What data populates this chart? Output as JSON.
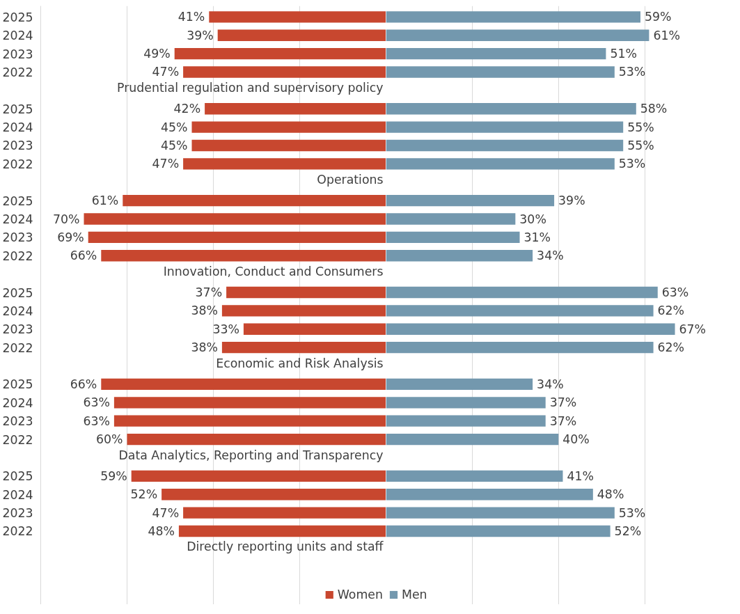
{
  "chart_data": [
    {
      "type": "bar",
      "orientation": "horizontal",
      "categories": [
        "2025",
        "2024",
        "2023",
        "2022",
        null,
        "2025",
        "2024",
        "2023",
        "2022",
        null,
        "2025",
        "2024",
        "2023",
        "2022",
        null,
        "2025",
        "2024",
        "2023",
        "2022",
        null,
        "2025",
        "2024",
        "2023",
        "2022",
        null,
        "2025",
        "2024",
        "2023",
        "2022",
        null
      ],
      "series": [
        {
          "name": "Women",
          "color": "#c8472f",
          "values": [
            41,
            39,
            49,
            47,
            null,
            42,
            45,
            45,
            47,
            null,
            61,
            70,
            69,
            66,
            null,
            37,
            38,
            33,
            38,
            null,
            66,
            63,
            63,
            60,
            null,
            59,
            52,
            47,
            48,
            null
          ],
          "value_labels": [
            "41%",
            "39%",
            "49%",
            "47%",
            null,
            "42%",
            "45%",
            "45%",
            "47%",
            null,
            "61%",
            "70%",
            "69%",
            "66%",
            null,
            "37%",
            "38%",
            "33%",
            "38%",
            null,
            "66%",
            "63%",
            "63%",
            "60%",
            null,
            "59%",
            "52%",
            "47%",
            "48%",
            null
          ]
        }
      ],
      "annotations": [
        "Prudential regulation and supervisory policy",
        "Operations",
        "Innovation, Conduct and Consumers",
        "Economic and Risk Analysis",
        "Data Analytics, Reporting and Transparency",
        "Directly reporting units and staff"
      ],
      "xlim": [
        80,
        0
      ],
      "xticks": [
        {
          "value": 60,
          "label": null
        },
        {
          "value": 40,
          "label": null
        },
        {
          "value": 20,
          "label": null
        }
      ],
      "grid": "x",
      "legend": "bottom right",
      "tick_labels": "y"
    },
    {
      "type": "bar",
      "orientation": "horizontal",
      "categories": [
        "2025",
        "2024",
        "2023",
        "2022",
        null,
        "2025",
        "2024",
        "2023",
        "2022",
        null,
        "2025",
        "2024",
        "2023",
        "2022",
        null,
        "2025",
        "2024",
        "2023",
        "2022",
        null,
        "2025",
        "2024",
        "2023",
        "2022",
        null,
        "2025",
        "2024",
        "2023",
        "2022",
        null
      ],
      "series": [
        {
          "name": "Men",
          "color": "#7398ae",
          "values": [
            59,
            61,
            51,
            53,
            null,
            58,
            55,
            55,
            53,
            null,
            39,
            30,
            31,
            34,
            null,
            63,
            62,
            67,
            62,
            null,
            34,
            37,
            37,
            40,
            null,
            41,
            48,
            53,
            52,
            null
          ],
          "value_labels": [
            "59%",
            "61%",
            "51%",
            "53%",
            null,
            "58%",
            "55%",
            "55%",
            "53%",
            null,
            "39%",
            "30%",
            "31%",
            "34%",
            null,
            "63%",
            "62%",
            "67%",
            "62%",
            null,
            "34%",
            "37%",
            "37%",
            "40%",
            null,
            "41%",
            "48%",
            "53%",
            "52%",
            null
          ]
        }
      ],
      "xticks": [
        {
          "value": 20,
          "label": null
        },
        {
          "value": 40,
          "label": null
        },
        {
          "value": 60,
          "label": null
        }
      ],
      "grid": "x",
      "legend": "bottom left",
      "tick_labels": false
    }
  ]
}
